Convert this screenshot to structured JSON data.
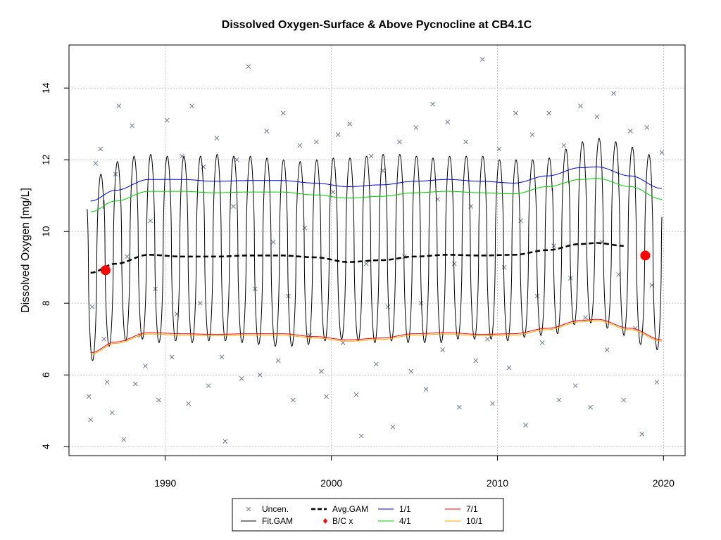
{
  "chart_data": {
    "type": "line",
    "title": "Dissolved Oxygen-Surface & Above Pycnocline at CB4.1C",
    "xlabel": "",
    "ylabel": "Dissolved Oxygen [mg/L]",
    "xlim": [
      1984.2,
      2021.3
    ],
    "ylim": [
      3.75,
      15.2
    ],
    "x_ticks": [
      1990,
      2000,
      2010,
      2020
    ],
    "y_ticks": [
      4,
      6,
      8,
      10,
      12,
      14
    ],
    "grid": true,
    "legend_position": "bottom-center",
    "legend": [
      {
        "label": "Uncen.",
        "kind": "x-marker",
        "color": "#6e7b8b"
      },
      {
        "label": "Fit.GAM",
        "kind": "line",
        "color": "#000000"
      },
      {
        "label": "Avg.GAM",
        "kind": "dashed-line",
        "color": "#000000"
      },
      {
        "label": "B/C x",
        "kind": "diamond",
        "color": "#ff0000"
      },
      {
        "label": "1/1",
        "kind": "line",
        "color": "#0000cd"
      },
      {
        "label": "4/1",
        "kind": "line",
        "color": "#00cd00"
      },
      {
        "label": "7/1",
        "kind": "line",
        "color": "#ff0000"
      },
      {
        "label": "10/1",
        "kind": "line",
        "color": "#ffa500"
      }
    ],
    "series": [
      {
        "name": "1/1",
        "color": "#0000cd",
        "x": [
          1985.5,
          1987,
          1989,
          1991,
          1993,
          1995,
          1997,
          1999,
          2001,
          2003,
          2005,
          2007,
          2009,
          2011,
          2013,
          2015,
          2016,
          2018,
          2019.9
        ],
        "values": [
          10.85,
          11.15,
          11.45,
          11.45,
          11.4,
          11.42,
          11.42,
          11.35,
          11.25,
          11.3,
          11.4,
          11.45,
          11.4,
          11.35,
          11.55,
          11.78,
          11.8,
          11.55,
          11.2
        ]
      },
      {
        "name": "4/1",
        "color": "#00cd00",
        "x": [
          1985.5,
          1987,
          1989,
          1991,
          1993,
          1995,
          1997,
          1999,
          2001,
          2003,
          2005,
          2007,
          2009,
          2011,
          2013,
          2015,
          2016,
          2018,
          2019.9
        ],
        "values": [
          10.55,
          10.85,
          11.12,
          11.12,
          11.08,
          11.1,
          11.1,
          11.02,
          10.93,
          10.98,
          11.08,
          11.12,
          11.08,
          11.05,
          11.25,
          11.45,
          11.48,
          11.25,
          10.9
        ]
      },
      {
        "name": "7/1",
        "color": "#ff0000",
        "x": [
          1985.5,
          1987,
          1989,
          1991,
          1993,
          1995,
          1997,
          1999,
          2001,
          2003,
          2005,
          2007,
          2009,
          2011,
          2013,
          2015,
          2016,
          2018,
          2019.9
        ],
        "values": [
          6.62,
          6.92,
          7.18,
          7.15,
          7.13,
          7.15,
          7.15,
          7.07,
          6.98,
          7.03,
          7.15,
          7.18,
          7.13,
          7.15,
          7.3,
          7.52,
          7.55,
          7.3,
          6.98
        ]
      },
      {
        "name": "10/1",
        "color": "#ffa500",
        "x": [
          1985.5,
          1987,
          1989,
          1991,
          1993,
          1995,
          1997,
          1999,
          2001,
          2003,
          2005,
          2007,
          2009,
          2011,
          2013,
          2015,
          2016,
          2018,
          2019.9
        ],
        "values": [
          6.58,
          6.88,
          7.14,
          7.11,
          7.09,
          7.11,
          7.11,
          7.03,
          6.94,
          6.99,
          7.11,
          7.14,
          7.09,
          7.11,
          7.26,
          7.48,
          7.51,
          7.26,
          6.94
        ]
      },
      {
        "name": "Avg.GAM",
        "color": "#000000",
        "x": [
          1985.5,
          1987,
          1989,
          1991,
          1993,
          1995,
          1997,
          1999,
          2001,
          2003,
          2005,
          2007,
          2009,
          2011,
          2013,
          2015,
          2016,
          2017.6
        ],
        "values": [
          8.85,
          9.1,
          9.35,
          9.3,
          9.3,
          9.33,
          9.33,
          9.28,
          9.15,
          9.2,
          9.3,
          9.35,
          9.33,
          9.35,
          9.48,
          9.65,
          9.68,
          9.6
        ]
      },
      {
        "name": "Fit.GAM",
        "color": "#000000",
        "description_kind": "seasonal",
        "x_start": 1985.3,
        "x_end": 2019.9,
        "upper_peaks": [
          11.6,
          11.95,
          12.1,
          12.15,
          12.1,
          12.1,
          12.1,
          12.15,
          12.1,
          12.1,
          12.05,
          12.0,
          11.95,
          12.0,
          12.05,
          12.05,
          12.1,
          12.15,
          12.15,
          12.1,
          12.05,
          12.1,
          12.1,
          12.1,
          12.0,
          12.0,
          12.0,
          12.05,
          12.3,
          12.5,
          12.6,
          12.5,
          12.35,
          12.15,
          12.0
        ],
        "lower_troughs": [
          6.4,
          6.8,
          6.95,
          7.0,
          6.9,
          6.95,
          6.9,
          6.95,
          6.95,
          6.9,
          6.85,
          6.8,
          6.8,
          6.85,
          6.95,
          7.0,
          6.95,
          6.9,
          6.95,
          6.9,
          6.9,
          6.9,
          7.0,
          7.0,
          7.0,
          6.95,
          7.05,
          7.1,
          7.15,
          7.4,
          7.45,
          7.3,
          7.1,
          6.85,
          6.7
        ]
      }
    ],
    "scatter": {
      "name": "Uncen.",
      "marker": "x",
      "color": "#6e7b8b",
      "x": [
        1985.4,
        1985.5,
        1985.6,
        1985.8,
        1986.1,
        1986.3,
        1986.5,
        1986.8,
        1987.0,
        1987.2,
        1987.5,
        1987.7,
        1988.0,
        1988.2,
        1988.5,
        1988.8,
        1989.1,
        1989.4,
        1989.6,
        1990.1,
        1990.4,
        1990.7,
        1991.0,
        1991.4,
        1991.6,
        1992.1,
        1992.3,
        1992.6,
        1993.1,
        1993.4,
        1993.6,
        1994.1,
        1994.3,
        1994.6,
        1995.0,
        1995.4,
        1995.7,
        1996.1,
        1996.5,
        1996.8,
        1997.1,
        1997.4,
        1997.7,
        1998.1,
        1998.4,
        1998.7,
        1999.1,
        1999.4,
        1999.7,
        2000.1,
        2000.4,
        2000.7,
        2001.1,
        2001.5,
        2001.8,
        2002.1,
        2002.4,
        2002.7,
        2003.1,
        2003.4,
        2003.7,
        2004.1,
        2004.4,
        2004.8,
        2005.1,
        2005.4,
        2005.7,
        2006.1,
        2006.4,
        2006.7,
        2007.0,
        2007.4,
        2007.7,
        2008.1,
        2008.4,
        2008.7,
        2009.1,
        2009.4,
        2009.7,
        2010.1,
        2010.4,
        2010.7,
        2011.1,
        2011.4,
        2011.7,
        2012.1,
        2012.4,
        2012.7,
        2013.1,
        2013.4,
        2013.7,
        2014.0,
        2014.4,
        2014.7,
        2015.0,
        2015.3,
        2015.6,
        2016.0,
        2016.3,
        2016.6,
        2017.0,
        2017.3,
        2017.6,
        2018.0,
        2018.3,
        2018.7,
        2019.0,
        2019.3,
        2019.6,
        2019.9
      ],
      "values": [
        5.4,
        4.75,
        7.9,
        11.9,
        12.3,
        7.0,
        5.8,
        4.95,
        11.6,
        13.5,
        4.2,
        9.3,
        12.95,
        5.75,
        7.1,
        6.25,
        10.3,
        8.4,
        5.3,
        13.1,
        6.5,
        7.7,
        12.1,
        5.2,
        13.5,
        8.0,
        11.8,
        5.7,
        12.6,
        6.5,
        4.15,
        10.7,
        12.0,
        5.9,
        14.6,
        8.4,
        6.0,
        12.8,
        9.7,
        6.4,
        13.3,
        8.2,
        5.3,
        12.4,
        10.1,
        7.1,
        12.5,
        6.1,
        5.4,
        11.1,
        12.7,
        6.9,
        13.0,
        5.45,
        4.3,
        9.1,
        12.1,
        6.3,
        11.7,
        7.9,
        4.55,
        12.5,
        9.3,
        6.1,
        12.9,
        8.0,
        5.6,
        13.55,
        10.9,
        6.7,
        13.05,
        9.1,
        5.1,
        12.5,
        10.7,
        6.4,
        14.8,
        7.0,
        5.2,
        12.3,
        9.0,
        6.2,
        13.3,
        10.3,
        4.6,
        12.7,
        8.2,
        6.9,
        13.3,
        9.6,
        5.3,
        12.4,
        8.7,
        5.7,
        13.5,
        7.6,
        5.1,
        13.2,
        9.7,
        6.7,
        13.85,
        8.8,
        5.3,
        12.8,
        7.3,
        4.35,
        12.9,
        8.5,
        5.8,
        12.2
      ]
    },
    "bc_points": [
      {
        "x": 1986.4,
        "value": 8.92,
        "color": "#ff0000"
      },
      {
        "x": 2018.9,
        "value": 9.33,
        "color": "#ff0000"
      }
    ]
  }
}
